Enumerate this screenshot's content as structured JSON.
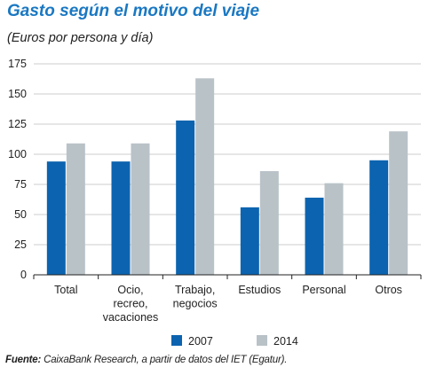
{
  "header": {
    "title": "Gasto según el motivo del viaje",
    "subtitle": "(Euros por persona y día)"
  },
  "colors": {
    "series_2007": "#0c64b0",
    "series_2014": "#b9c2c7",
    "title": "#1a78c2",
    "grid": "#bdbdbd"
  },
  "chart_data": {
    "type": "bar",
    "categories": [
      [
        "Total"
      ],
      [
        "Ocio,",
        "recreo,",
        "vacaciones"
      ],
      [
        "Trabajo,",
        "negocios"
      ],
      [
        "Estudios"
      ],
      [
        "Personal"
      ],
      [
        "Otros"
      ]
    ],
    "series": [
      {
        "name": "2007",
        "values": [
          94,
          94,
          128,
          56,
          64,
          95
        ]
      },
      {
        "name": "2014",
        "values": [
          109,
          109,
          163,
          86,
          76,
          119
        ]
      }
    ],
    "yticks": [
      "0",
      "25",
      "50",
      "75",
      "100",
      "125",
      "150",
      "175"
    ],
    "ylim": [
      0,
      175
    ],
    "grid": true,
    "legend_position": "bottom"
  },
  "footer": {
    "source_label": "Fuente:",
    "source_text": " CaixaBank Research, a partir de datos del IET (Egatur)."
  }
}
